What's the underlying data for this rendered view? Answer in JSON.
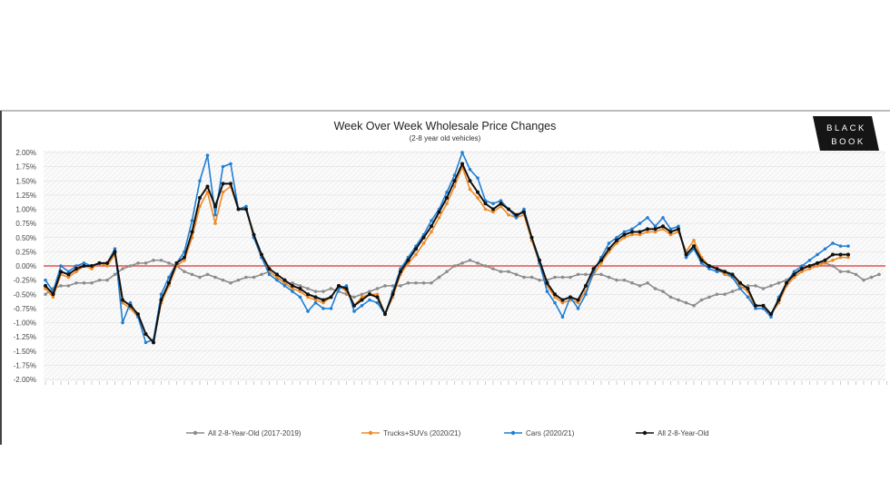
{
  "chart_data": {
    "type": "line",
    "title": "Week Over Week Wholesale Price Changes",
    "subtitle": "(2-8 year old vehicles)",
    "xlabel": "",
    "ylabel": "",
    "ylim": [
      -2.0,
      2.0
    ],
    "yticks": [
      "2.00%",
      "1.75%",
      "1.50%",
      "1.25%",
      "1.00%",
      "0.75%",
      "0.50%",
      "0.25%",
      "0.00%",
      "-0.25%",
      "-0.50%",
      "-0.75%",
      "-1.00%",
      "-1.25%",
      "-1.50%",
      "-1.75%",
      "-2.00%"
    ],
    "ytick_values": [
      2.0,
      1.75,
      1.5,
      1.25,
      1.0,
      0.75,
      0.5,
      0.25,
      0,
      -0.25,
      -0.5,
      -0.75,
      -1.0,
      -1.25,
      -1.5,
      -1.75,
      -2.0
    ],
    "grid": true,
    "reference_line": {
      "value": 0,
      "color": "#e03030"
    },
    "legend_position": "bottom",
    "series": [
      {
        "name": "All 2-8-Year-Old (2017-2019)",
        "color": "#8c8c8c",
        "values": [
          -0.5,
          -0.4,
          -0.35,
          -0.35,
          -0.3,
          -0.3,
          -0.3,
          -0.25,
          -0.25,
          -0.15,
          -0.05,
          0.0,
          0.05,
          0.05,
          0.1,
          0.1,
          0.05,
          0.0,
          -0.1,
          -0.15,
          -0.2,
          -0.15,
          -0.2,
          -0.25,
          -0.3,
          -0.25,
          -0.2,
          -0.2,
          -0.15,
          -0.1,
          -0.2,
          -0.3,
          -0.3,
          -0.35,
          -0.4,
          -0.45,
          -0.45,
          -0.4,
          -0.45,
          -0.5,
          -0.55,
          -0.5,
          -0.45,
          -0.4,
          -0.35,
          -0.35,
          -0.35,
          -0.3,
          -0.3,
          -0.3,
          -0.3,
          -0.2,
          -0.1,
          0.0,
          0.05,
          0.1,
          0.05,
          0.0,
          -0.05,
          -0.1,
          -0.1,
          -0.15,
          -0.2,
          -0.2,
          -0.25,
          -0.25,
          -0.2,
          -0.2,
          -0.2,
          -0.15,
          -0.15,
          -0.15,
          -0.15,
          -0.2,
          -0.25,
          -0.25,
          -0.3,
          -0.35,
          -0.3,
          -0.4,
          -0.45,
          -0.55,
          -0.6,
          -0.65,
          -0.7,
          -0.6,
          -0.55,
          -0.5,
          -0.5,
          -0.45,
          -0.4,
          -0.35,
          -0.35,
          -0.4,
          -0.35,
          -0.3,
          -0.25,
          -0.15,
          -0.05,
          0.0,
          0.05,
          0.05,
          0.0,
          -0.1,
          -0.1,
          -0.15,
          -0.25,
          -0.2,
          -0.15
        ]
      },
      {
        "name": "Trucks+SUVs (2020/21)",
        "color": "#f08a24",
        "values": [
          -0.4,
          -0.55,
          -0.15,
          -0.2,
          -0.1,
          0.0,
          -0.05,
          0.05,
          0.0,
          0.2,
          -0.65,
          -0.75,
          -0.9,
          -1.2,
          -1.35,
          -0.65,
          -0.35,
          0.0,
          0.1,
          0.5,
          1.05,
          1.3,
          0.75,
          1.3,
          1.4,
          1.0,
          1.0,
          0.5,
          0.15,
          -0.1,
          -0.2,
          -0.3,
          -0.4,
          -0.45,
          -0.55,
          -0.6,
          -0.65,
          -0.55,
          -0.35,
          -0.45,
          -0.7,
          -0.55,
          -0.5,
          -0.5,
          -0.85,
          -0.55,
          -0.15,
          0.05,
          0.2,
          0.4,
          0.6,
          0.85,
          1.1,
          1.4,
          1.75,
          1.35,
          1.2,
          1.0,
          0.95,
          1.05,
          0.9,
          0.85,
          0.9,
          0.45,
          0.05,
          -0.35,
          -0.55,
          -0.65,
          -0.6,
          -0.65,
          -0.45,
          -0.15,
          0.05,
          0.25,
          0.4,
          0.5,
          0.55,
          0.55,
          0.6,
          0.6,
          0.65,
          0.55,
          0.6,
          0.25,
          0.45,
          0.15,
          0.0,
          -0.05,
          -0.15,
          -0.2,
          -0.35,
          -0.45,
          -0.75,
          -0.75,
          -0.85,
          -0.65,
          -0.35,
          -0.2,
          -0.1,
          -0.05,
          0.0,
          0.05,
          0.1,
          0.15,
          0.15
        ]
      },
      {
        "name": "Cars (2020/21)",
        "color": "#1f7fd4",
        "values": [
          -0.25,
          -0.45,
          0.0,
          -0.1,
          0.0,
          0.05,
          0.0,
          0.05,
          0.05,
          0.3,
          -1.0,
          -0.65,
          -0.9,
          -1.35,
          -1.3,
          -0.5,
          -0.2,
          0.05,
          0.25,
          0.8,
          1.5,
          1.95,
          0.9,
          1.75,
          1.8,
          1.0,
          1.05,
          0.5,
          0.15,
          -0.15,
          -0.25,
          -0.35,
          -0.45,
          -0.55,
          -0.8,
          -0.65,
          -0.75,
          -0.75,
          -0.4,
          -0.35,
          -0.8,
          -0.7,
          -0.6,
          -0.65,
          -0.85,
          -0.45,
          -0.05,
          0.15,
          0.35,
          0.55,
          0.8,
          1.0,
          1.3,
          1.6,
          2.0,
          1.7,
          1.55,
          1.15,
          1.1,
          1.15,
          1.0,
          0.85,
          1.0,
          0.5,
          0.05,
          -0.45,
          -0.65,
          -0.9,
          -0.55,
          -0.75,
          -0.5,
          -0.1,
          0.15,
          0.4,
          0.5,
          0.6,
          0.65,
          0.75,
          0.85,
          0.7,
          0.85,
          0.65,
          0.7,
          0.15,
          0.3,
          0.05,
          -0.05,
          -0.1,
          -0.1,
          -0.2,
          -0.4,
          -0.55,
          -0.75,
          -0.75,
          -0.9,
          -0.55,
          -0.3,
          -0.1,
          0.0,
          0.1,
          0.2,
          0.3,
          0.4,
          0.35,
          0.35
        ]
      },
      {
        "name": "All 2-8-Year-Old",
        "color": "#111111",
        "values": [
          -0.35,
          -0.5,
          -0.1,
          -0.15,
          -0.05,
          0.0,
          0.0,
          0.05,
          0.05,
          0.25,
          -0.6,
          -0.7,
          -0.85,
          -1.2,
          -1.35,
          -0.6,
          -0.3,
          0.05,
          0.15,
          0.6,
          1.2,
          1.4,
          1.05,
          1.45,
          1.45,
          1.0,
          1.0,
          0.55,
          0.2,
          -0.05,
          -0.15,
          -0.25,
          -0.35,
          -0.4,
          -0.5,
          -0.55,
          -0.6,
          -0.55,
          -0.35,
          -0.4,
          -0.7,
          -0.6,
          -0.5,
          -0.55,
          -0.85,
          -0.5,
          -0.1,
          0.1,
          0.3,
          0.5,
          0.7,
          0.95,
          1.2,
          1.5,
          1.8,
          1.5,
          1.3,
          1.1,
          1.0,
          1.1,
          1.0,
          0.9,
          0.95,
          0.5,
          0.1,
          -0.3,
          -0.5,
          -0.6,
          -0.55,
          -0.6,
          -0.35,
          -0.05,
          0.1,
          0.3,
          0.45,
          0.55,
          0.6,
          0.6,
          0.65,
          0.65,
          0.7,
          0.6,
          0.65,
          0.2,
          0.35,
          0.1,
          0.0,
          -0.05,
          -0.1,
          -0.15,
          -0.3,
          -0.4,
          -0.7,
          -0.7,
          -0.85,
          -0.6,
          -0.3,
          -0.15,
          -0.05,
          0.0,
          0.05,
          0.1,
          0.2,
          0.2,
          0.2
        ]
      }
    ]
  },
  "logo": {
    "line1": "BLACK",
    "line2": "BOOK"
  }
}
